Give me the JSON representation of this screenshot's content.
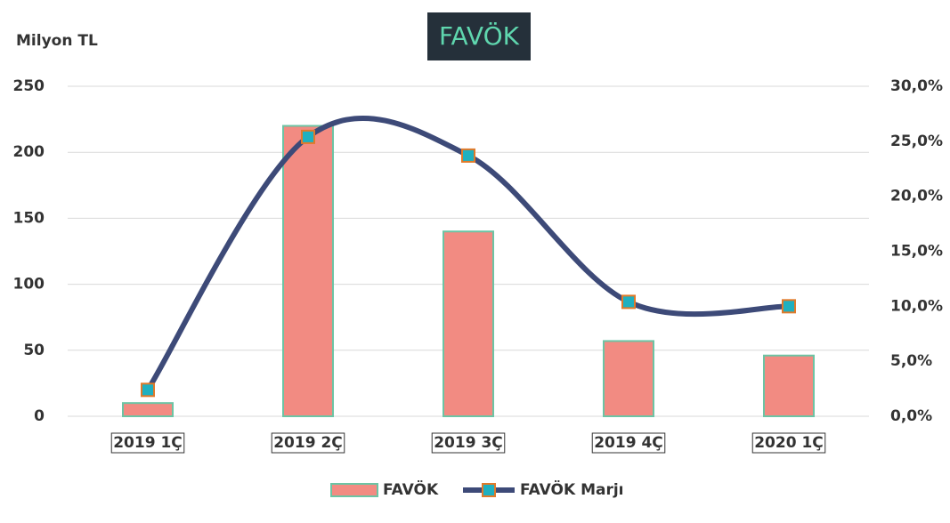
{
  "chart_data": {
    "type": "bar",
    "title": "FAVÖK",
    "y_axis_label": "Milyon TL",
    "categories": [
      "2019 1Ç",
      "2019 2Ç",
      "2019 3Ç",
      "2019 4Ç",
      "2020 1Ç"
    ],
    "series": [
      {
        "name": "FAVÖK",
        "color": "#f28b82",
        "edge_color": "#6cc4a4",
        "type": "bar",
        "values": [
          10,
          220,
          140,
          57,
          46
        ]
      },
      {
        "name": "FAVÖK Marjı",
        "color": "#3d4a78",
        "marker_color": "#1fb0c0",
        "type": "line",
        "axis": "y2",
        "smooth": true,
        "values": [
          2.4,
          25.4,
          23.7,
          10.4,
          10.0
        ]
      }
    ],
    "ylim": [
      0,
      250
    ],
    "yticks": [
      0,
      50,
      100,
      150,
      200,
      250
    ],
    "y2lim": [
      0,
      30
    ],
    "y2ticks": [
      {
        "value": 0,
        "label": "0,0%"
      },
      {
        "value": 5,
        "label": "5,0%"
      },
      {
        "value": 10,
        "label": "10,0%"
      },
      {
        "value": 15,
        "label": "15,0%"
      },
      {
        "value": 20,
        "label": "20,0%"
      },
      {
        "value": 25,
        "label": "25,0%"
      },
      {
        "value": 30,
        "label": "30,0%"
      }
    ],
    "grid": true,
    "legend": "bottom"
  }
}
